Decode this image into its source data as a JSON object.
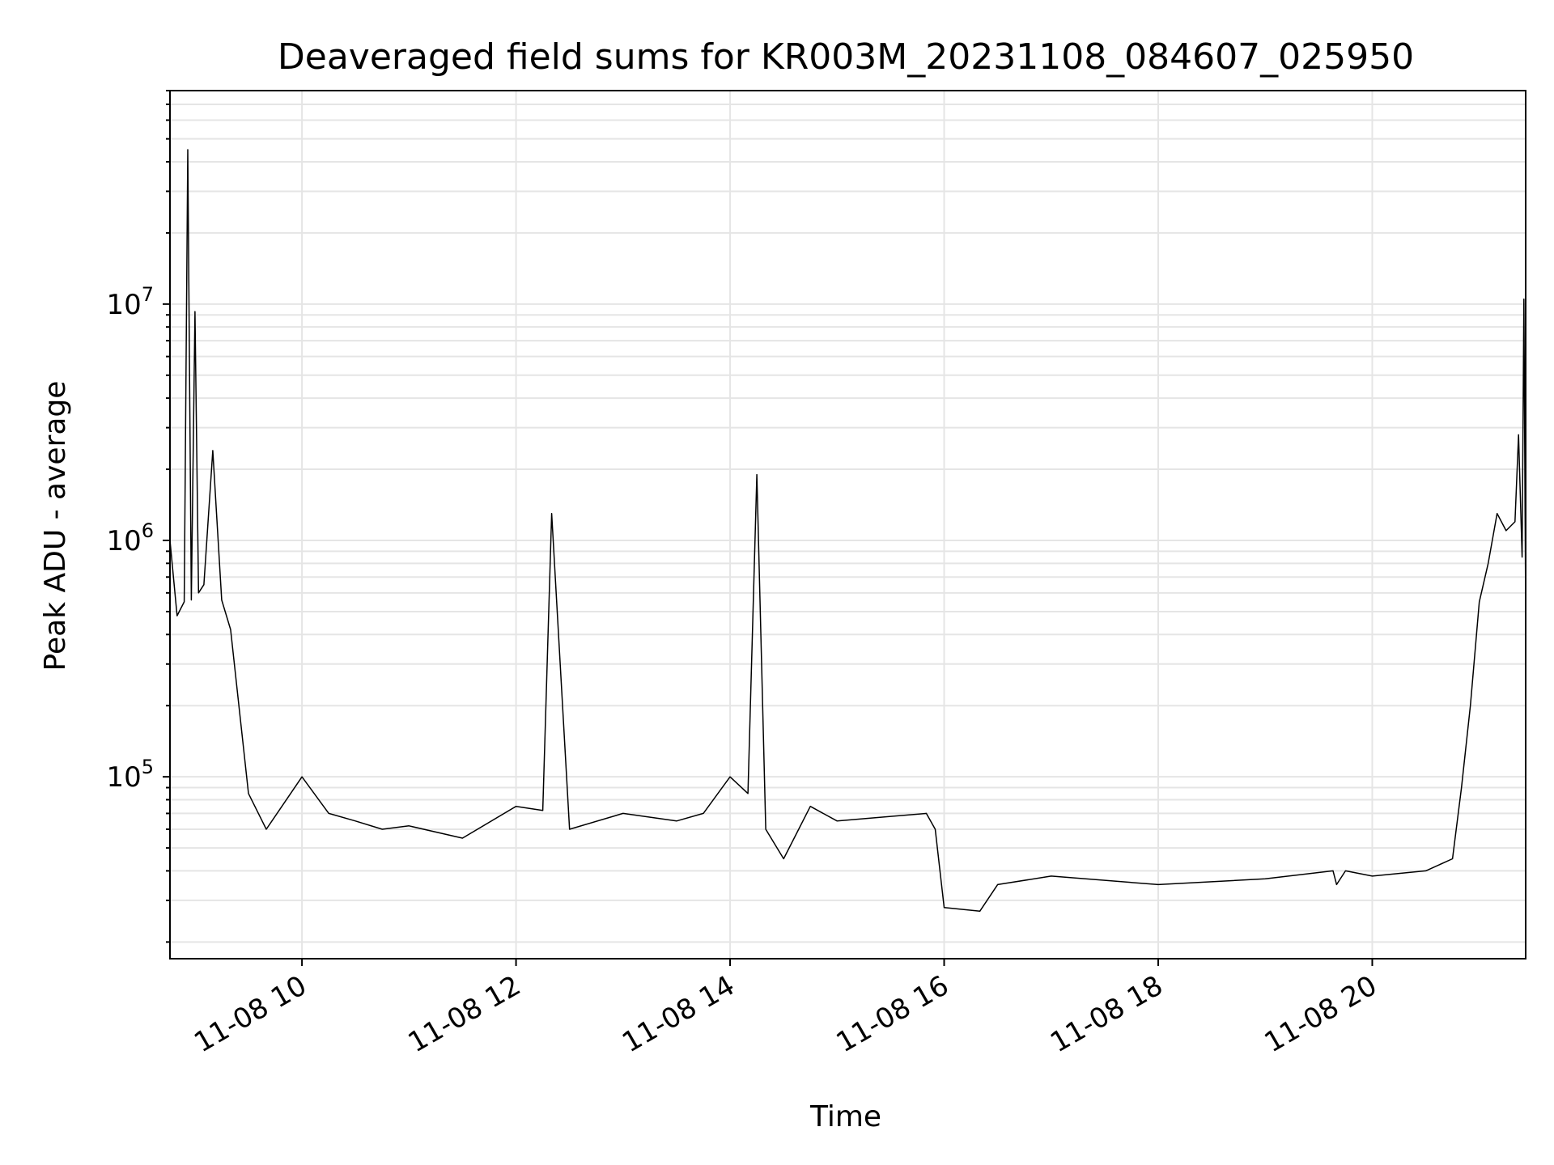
{
  "chart_data": {
    "type": "line",
    "title": "Deaveraged field sums for KR003M_20231108_084607_025950",
    "xlabel": "Time",
    "ylabel": "Peak ADU - average",
    "y_scale": "log",
    "ylim": [
      17000,
      80000000
    ],
    "xlim": [
      "2023-11-08 08:46",
      "2023-11-08 21:26"
    ],
    "grid": true,
    "line_color": "#000000",
    "grid_color": "#e5e5e5",
    "x_ticks": [
      {
        "value": "2023-11-08 10:00",
        "label": "11-08 10"
      },
      {
        "value": "2023-11-08 12:00",
        "label": "11-08 12"
      },
      {
        "value": "2023-11-08 14:00",
        "label": "11-08 14"
      },
      {
        "value": "2023-11-08 16:00",
        "label": "11-08 16"
      },
      {
        "value": "2023-11-08 18:00",
        "label": "11-08 18"
      },
      {
        "value": "2023-11-08 20:00",
        "label": "11-08 20"
      }
    ],
    "y_ticks": [
      {
        "value": 100000,
        "base": "10",
        "exp": "5"
      },
      {
        "value": 1000000,
        "base": "10",
        "exp": "6"
      },
      {
        "value": 10000000,
        "base": "10",
        "exp": "7"
      }
    ],
    "series": [
      {
        "x": [
          "2023-11-08 08:46",
          "2023-11-08 08:50",
          "2023-11-08 08:54",
          "2023-11-08 08:56",
          "2023-11-08 08:58",
          "2023-11-08 09:00",
          "2023-11-08 09:02",
          "2023-11-08 09:05",
          "2023-11-08 09:10",
          "2023-11-08 09:15",
          "2023-11-08 09:20",
          "2023-11-08 09:30",
          "2023-11-08 09:40",
          "2023-11-08 10:00",
          "2023-11-08 10:15",
          "2023-11-08 10:30",
          "2023-11-08 10:45",
          "2023-11-08 11:00",
          "2023-11-08 11:30",
          "2023-11-08 12:00",
          "2023-11-08 12:15",
          "2023-11-08 12:20",
          "2023-11-08 12:30",
          "2023-11-08 13:00",
          "2023-11-08 13:30",
          "2023-11-08 13:45",
          "2023-11-08 14:00",
          "2023-11-08 14:10",
          "2023-11-08 14:15",
          "2023-11-08 14:20",
          "2023-11-08 14:30",
          "2023-11-08 14:45",
          "2023-11-08 15:00",
          "2023-11-08 15:30",
          "2023-11-08 15:50",
          "2023-11-08 15:55",
          "2023-11-08 16:00",
          "2023-11-08 16:20",
          "2023-11-08 16:30",
          "2023-11-08 17:00",
          "2023-11-08 18:00",
          "2023-11-08 19:00",
          "2023-11-08 19:38",
          "2023-11-08 19:40",
          "2023-11-08 19:45",
          "2023-11-08 20:00",
          "2023-11-08 20:30",
          "2023-11-08 20:45",
          "2023-11-08 20:50",
          "2023-11-08 20:55",
          "2023-11-08 21:00",
          "2023-11-08 21:05",
          "2023-11-08 21:10",
          "2023-11-08 21:15",
          "2023-11-08 21:20",
          "2023-11-08 21:22",
          "2023-11-08 21:24",
          "2023-11-08 21:25",
          "2023-11-08 21:26"
        ],
        "values": [
          1000000,
          480000,
          550000,
          45000000,
          560000,
          9300000,
          600000,
          650000,
          2400000,
          560000,
          420000,
          85000,
          60000,
          100000,
          70000,
          65000,
          60000,
          62000,
          55000,
          75000,
          72000,
          1300000,
          60000,
          70000,
          65000,
          70000,
          100000,
          85000,
          1900000,
          60000,
          45000,
          75000,
          65000,
          68000,
          70000,
          60000,
          28000,
          27000,
          35000,
          38000,
          35000,
          37000,
          40000,
          35000,
          40000,
          38000,
          40000,
          45000,
          90000,
          200000,
          550000,
          800000,
          1300000,
          1100000,
          1200000,
          2800000,
          850000,
          10500000,
          500000
        ]
      }
    ]
  }
}
